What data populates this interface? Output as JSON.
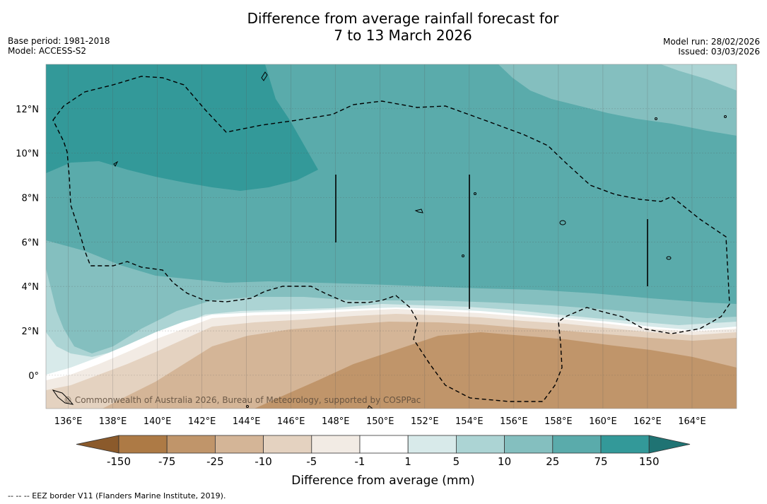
{
  "title_line1": "Difference from average rainfall forecast for",
  "title_line2": "7 to 13 March 2026",
  "base_period": "Base period: 1981-2018",
  "model": "Model: ACCESS-S2",
  "model_run": "Model run: 28/02/2026",
  "issued": "Issued: 03/03/2026",
  "copyright": "© Commonwealth of Australia 2026, Bureau of Meteorology, supported by COSPPac",
  "footnote": "--  --  -- EEZ border V11 (Flanders Marine Institute, 2019).",
  "colors": {
    "below_150": "#8b5a2b",
    "m150_m75": "#ad7a45",
    "m75_m25": "#c0956a",
    "m25_m10": "#d4b597",
    "m10_m5": "#e4d2c0",
    "m5_m1": "#f2ebe4",
    "m1_1": "#ffffff",
    "p1_5": "#d8eaea",
    "p5_10": "#acd4d4",
    "p10_25": "#84bfbf",
    "p25_75": "#5aabab",
    "p75_150": "#339999",
    "above_150": "#1f7373"
  },
  "chart_data": {
    "type": "heatmap",
    "title": "Difference from average rainfall forecast for 7 to 13 March 2026",
    "variable": "Difference from average rainfall (mm)",
    "lon_range": [
      135,
      166
    ],
    "lat_range": [
      -1.5,
      14
    ],
    "x_ticks": [
      "136°E",
      "138°E",
      "140°E",
      "142°E",
      "144°E",
      "146°E",
      "148°E",
      "150°E",
      "152°E",
      "154°E",
      "156°E",
      "158°E",
      "160°E",
      "162°E",
      "164°E"
    ],
    "x_tick_values": [
      136,
      138,
      140,
      142,
      144,
      146,
      148,
      150,
      152,
      154,
      156,
      158,
      160,
      162,
      164
    ],
    "y_ticks": [
      "12°N",
      "10°N",
      "8°N",
      "6°N",
      "4°N",
      "2°N",
      "0°"
    ],
    "y_tick_values": [
      12,
      10,
      8,
      6,
      4,
      2,
      0
    ],
    "colorbar": {
      "label": "Difference from average (mm)",
      "tick_labels": [
        "-150",
        "-75",
        "-25",
        "-10",
        "-5",
        "-1",
        "1",
        "5",
        "10",
        "25",
        "75",
        "150"
      ],
      "levels": [
        -150,
        -75,
        -25,
        -10,
        -5,
        -1,
        1,
        5,
        10,
        25,
        75,
        150
      ],
      "extend": "both"
    },
    "regions": [
      {
        "range": "75 to 150 mm",
        "area": "north-west, north of about 9°N from 135°E to 148°E"
      },
      {
        "range": "25 to 75 mm",
        "area": "central band from about 4°N to 12°N, and north-east of 148°E"
      },
      {
        "range": "10 to 25 mm",
        "area": "western and north-eastern margins, near 4–6°N"
      },
      {
        "range": "-25 to -75 mm",
        "area": "south-east of 148°E, south of about 2°N"
      }
    ],
    "annotations": [
      "EEZ boundary (dashed)",
      "Island coastlines"
    ]
  }
}
